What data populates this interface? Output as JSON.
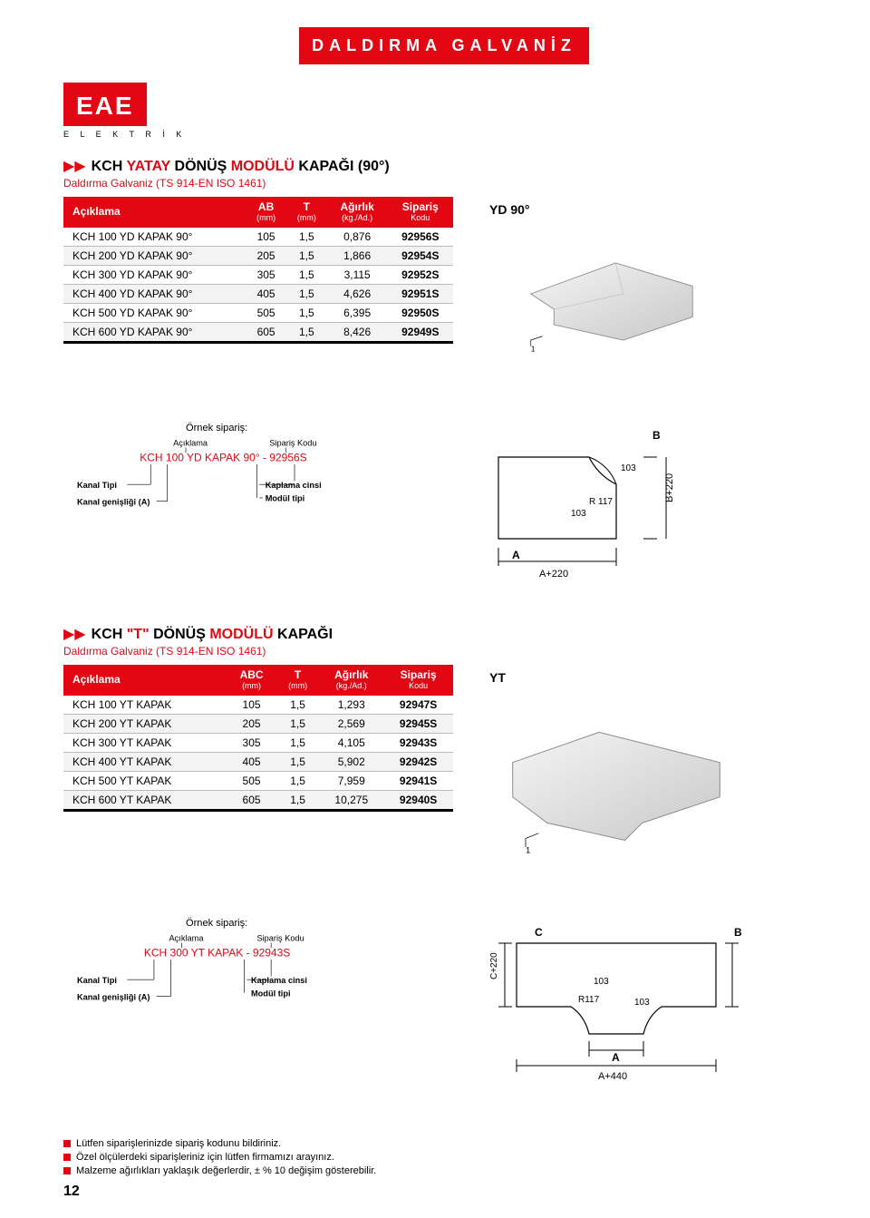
{
  "header_band": "DALDIRMA GALVANİZ",
  "logo": {
    "text": "EAE",
    "sub": "E L E K T R İ K"
  },
  "section1": {
    "title_prefix": "KCH ",
    "title_red1": "YATAY",
    "title_mid": " DÖNÜŞ ",
    "title_red2": "MODÜLÜ",
    "title_end": " KAPAĞI (90°)",
    "subtitle": "Daldırma Galvaniz (TS 914-EN ISO 1461)",
    "cols": {
      "c1": "Açıklama",
      "c2": "AB",
      "c2u": "(mm)",
      "c3": "T",
      "c3u": "(mm)",
      "c4": "Ağırlık",
      "c4u": "(kg./Ad.)",
      "c5": "Sipariş",
      "c5u": "Kodu"
    },
    "rows": [
      {
        "name": "KCH 100 YD KAPAK 90°",
        "ab": "105",
        "t": "1,5",
        "w": "0,876",
        "code": "92956S"
      },
      {
        "name": "KCH 200 YD KAPAK 90°",
        "ab": "205",
        "t": "1,5",
        "w": "1,866",
        "code": "92954S"
      },
      {
        "name": "KCH 300 YD KAPAK 90°",
        "ab": "305",
        "t": "1,5",
        "w": "3,115",
        "code": "92952S"
      },
      {
        "name": "KCH 400 YD KAPAK 90°",
        "ab": "405",
        "t": "1,5",
        "w": "4,626",
        "code": "92951S"
      },
      {
        "name": "KCH 500 YD KAPAK 90°",
        "ab": "505",
        "t": "1,5",
        "w": "6,395",
        "code": "92950S"
      },
      {
        "name": "KCH 600 YD KAPAK 90°",
        "ab": "605",
        "t": "1,5",
        "w": "8,426",
        "code": "92949S"
      }
    ],
    "right_label": "YD 90°",
    "dim1": "1",
    "example": {
      "title": "Örnek sipariş:",
      "aciklama_lbl": "Açıklama",
      "siparis_lbl": "Sipariş Kodu",
      "line": "KCH 100 YD KAPAK 90° - 92956S",
      "kanal_tipi": "Kanal Tipi",
      "kanal_gen": "Kanal genişliği (A)",
      "kaplama": "Kaplama cinsi",
      "modul": "Modül tipi"
    },
    "dim_diag": {
      "A": "A",
      "B": "B",
      "Bp": "B+220",
      "Ap": "A+220",
      "d103": "103",
      "R": "R 117"
    }
  },
  "section2": {
    "title_prefix": "KCH ",
    "title_red1": "\"T\"",
    "title_mid": " DÖNÜŞ ",
    "title_red2": "MODÜLÜ",
    "title_end": " KAPAĞI",
    "subtitle": "Daldırma Galvaniz (TS 914-EN ISO 1461)",
    "cols": {
      "c1": "Açıklama",
      "c2": "ABC",
      "c2u": "(mm)",
      "c3": "T",
      "c3u": "(mm)",
      "c4": "Ağırlık",
      "c4u": "(kg./Ad.)",
      "c5": "Sipariş",
      "c5u": "Kodu"
    },
    "rows": [
      {
        "name": "KCH 100 YT KAPAK",
        "ab": "105",
        "t": "1,5",
        "w": "1,293",
        "code": "92947S"
      },
      {
        "name": "KCH 200 YT KAPAK",
        "ab": "205",
        "t": "1,5",
        "w": "2,569",
        "code": "92945S"
      },
      {
        "name": "KCH 300 YT KAPAK",
        "ab": "305",
        "t": "1,5",
        "w": "4,105",
        "code": "92943S"
      },
      {
        "name": "KCH 400 YT KAPAK",
        "ab": "405",
        "t": "1,5",
        "w": "5,902",
        "code": "92942S"
      },
      {
        "name": "KCH 500 YT KAPAK",
        "ab": "505",
        "t": "1,5",
        "w": "7,959",
        "code": "92941S"
      },
      {
        "name": "KCH 600 YT KAPAK",
        "ab": "605",
        "t": "1,5",
        "w": "10,275",
        "code": "92940S"
      }
    ],
    "right_label": "YT",
    "dim1": "1",
    "example": {
      "title": "Örnek sipariş:",
      "aciklama_lbl": "Açıklama",
      "siparis_lbl": "Sipariş Kodu",
      "line": "KCH 300 YT KAPAK - 92943S",
      "kanal_tipi": "Kanal Tipi",
      "kanal_gen": "Kanal genişliği (A)",
      "kaplama": "Kaplama cinsi",
      "modul": "Modül tipi"
    },
    "dim_diag": {
      "A": "A",
      "B": "B",
      "C": "C",
      "Cp": "C+220",
      "Ap": "A+440",
      "d103": "103",
      "R": "R117"
    }
  },
  "footnotes": [
    "Lütfen siparişlerinizde sipariş kodunu bildiriniz.",
    "Özel ölçülerdeki siparişleriniz için lütfen firmamızı arayınız.",
    "Malzeme ağırlıkları yaklaşık değerlerdir, ± % 10 değişim gösterebilir."
  ],
  "page_number": "12"
}
